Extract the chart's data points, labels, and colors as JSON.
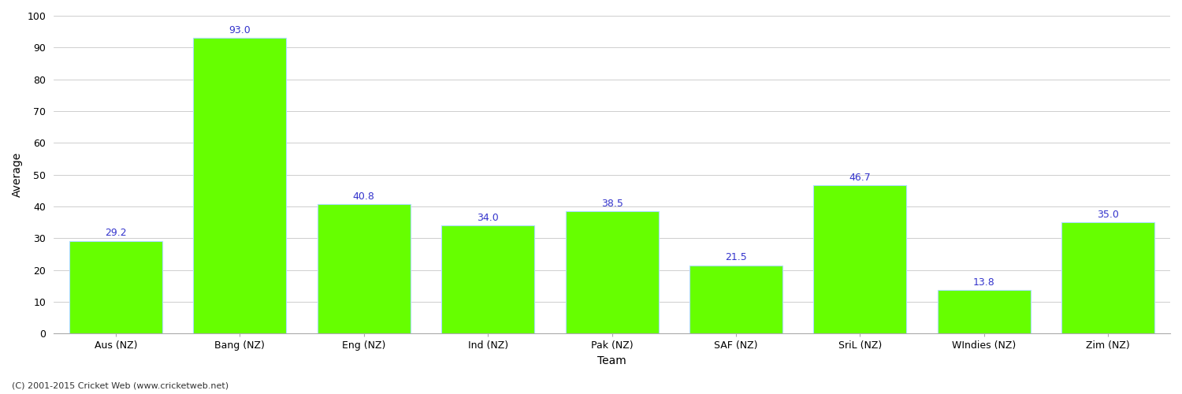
{
  "xlabel": "Team",
  "ylabel": "Average",
  "categories": [
    "Aus (NZ)",
    "Bang (NZ)",
    "Eng (NZ)",
    "Ind (NZ)",
    "Pak (NZ)",
    "SAF (NZ)",
    "SriL (NZ)",
    "WIndies (NZ)",
    "Zim (NZ)"
  ],
  "values": [
    29.2,
    93.0,
    40.8,
    34.0,
    38.5,
    21.5,
    46.7,
    13.8,
    35.0
  ],
  "bar_color": "#66ff00",
  "bar_edge_color": "#aaddff",
  "value_label_color": "#3333cc",
  "value_label_fontsize": 9,
  "ylim": [
    0,
    100
  ],
  "yticks": [
    0,
    10,
    20,
    30,
    40,
    50,
    60,
    70,
    80,
    90,
    100
  ],
  "grid_color": "#bbbbbb",
  "background_color": "#ffffff",
  "tick_label_fontsize": 9,
  "xlabel_fontsize": 10,
  "ylabel_fontsize": 10,
  "bar_width": 0.75,
  "footer_text": "(C) 2001-2015 Cricket Web (www.cricketweb.net)",
  "footer_fontsize": 8,
  "footer_color": "#333333",
  "spine_color": "#aaaaaa"
}
